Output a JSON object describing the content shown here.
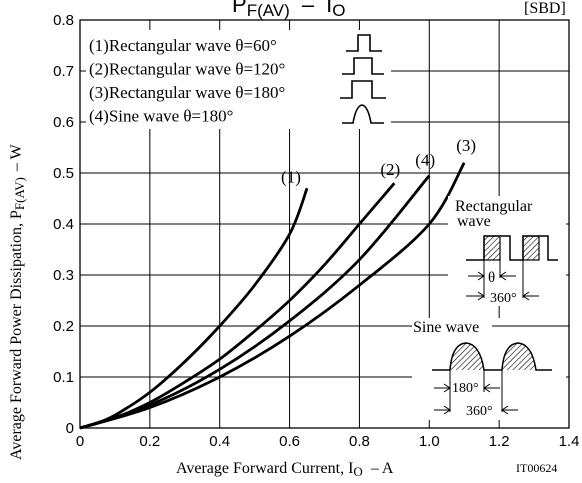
{
  "chart_data": {
    "type": "line",
    "title": "P",
    "title_sub_y": "F(AV)",
    "title_dash": "–",
    "title_x": "I",
    "title_sub_x": "O",
    "tag": "[SBD]",
    "xlabel_prefix": "Average Forward Current, I",
    "xlabel_sub": "O",
    "xlabel_suffix": "– A",
    "ylabel_prefix": "Average Forward Power Dissipation, P",
    "ylabel_sub": "F(AV)",
    "ylabel_suffix": "– W",
    "code": "IT00624",
    "xlim": [
      0,
      1.4
    ],
    "ylim": [
      0,
      0.8
    ],
    "x_ticks": [
      "0",
      "0.2",
      "0.4",
      "0.6",
      "0.8",
      "1.0",
      "1.2",
      "1.4"
    ],
    "y_ticks": [
      "0",
      "0.1",
      "0.2",
      "0.3",
      "0.4",
      "0.5",
      "0.6",
      "0.7",
      "0.8"
    ],
    "grid": true,
    "legend": [
      "(1)Rectangular wave θ=60°",
      "(2)Rectangular wave θ=120°",
      "(3)Rectangular wave θ=180°",
      "(4)Sine wave θ=180°"
    ],
    "series": [
      {
        "name": "(1)",
        "x": [
          0,
          0.05,
          0.1,
          0.2,
          0.3,
          0.4,
          0.5,
          0.6,
          0.65
        ],
        "y": [
          0,
          0.01,
          0.025,
          0.07,
          0.13,
          0.2,
          0.28,
          0.38,
          0.47
        ]
      },
      {
        "name": "(2)",
        "x": [
          0,
          0.1,
          0.2,
          0.3,
          0.4,
          0.5,
          0.6,
          0.7,
          0.8,
          0.9
        ],
        "y": [
          0,
          0.02,
          0.05,
          0.09,
          0.135,
          0.19,
          0.25,
          0.32,
          0.4,
          0.48
        ]
      },
      {
        "name": "(3)",
        "x": [
          0,
          0.2,
          0.4,
          0.6,
          0.8,
          1.0,
          1.1
        ],
        "y": [
          0,
          0.04,
          0.1,
          0.18,
          0.28,
          0.4,
          0.52
        ]
      },
      {
        "name": "(4)",
        "x": [
          0,
          0.2,
          0.4,
          0.6,
          0.8,
          1.0
        ],
        "y": [
          0,
          0.045,
          0.115,
          0.21,
          0.33,
          0.495
        ]
      }
    ],
    "inset": {
      "rect_label_1": "Rectangular",
      "rect_label_2": "wave",
      "theta": "θ",
      "period_rect": "360°",
      "sine_label": "Sine wave",
      "half": "180°",
      "period_sine": "360°"
    }
  }
}
